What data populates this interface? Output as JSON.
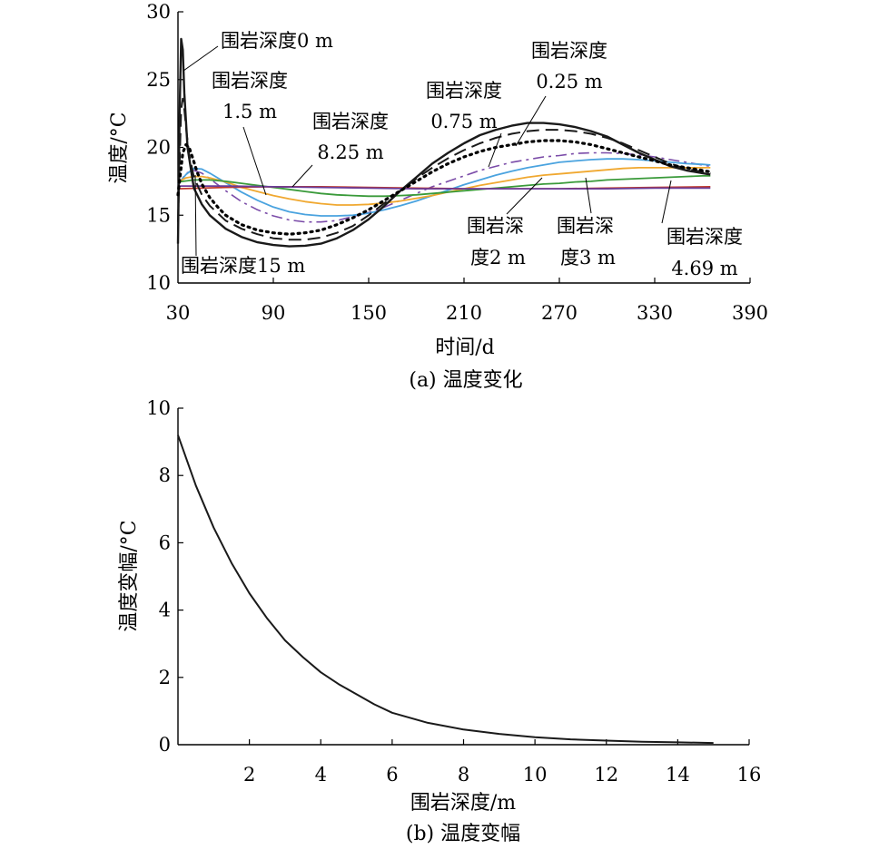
{
  "chart_data": [
    {
      "type": "line",
      "caption": "(a) 温度变化",
      "xlabel": "时间/d",
      "ylabel": "温度/°C",
      "xlim": [
        30,
        390
      ],
      "ylim": [
        10,
        30
      ],
      "xticks": [
        "30",
        "90",
        "150",
        "210",
        "270",
        "330",
        "390"
      ],
      "yticks": [
        "10",
        "15",
        "20",
        "25",
        "30"
      ],
      "grid": false,
      "series": [
        {
          "name": "围岩深度0 m",
          "color": "#1a1a1a",
          "dash": "",
          "width": 2.4,
          "x": [
            30,
            31,
            32,
            33,
            34,
            36,
            40,
            45,
            50,
            60,
            70,
            80,
            90,
            100,
            110,
            120,
            130,
            140,
            150,
            160,
            170,
            180,
            190,
            200,
            210,
            220,
            230,
            240,
            250,
            260,
            270,
            280,
            290,
            300,
            310,
            320,
            330,
            340,
            350,
            360,
            365
          ],
          "y": [
            12.9,
            22.5,
            28.0,
            27.2,
            24.0,
            20.0,
            17.0,
            15.8,
            15.0,
            14.0,
            13.4,
            13.0,
            12.8,
            12.7,
            12.75,
            12.9,
            13.3,
            13.9,
            14.7,
            15.7,
            16.8,
            17.8,
            18.8,
            19.6,
            20.3,
            20.9,
            21.3,
            21.6,
            21.8,
            21.8,
            21.7,
            21.5,
            21.2,
            20.8,
            20.2,
            19.6,
            19.1,
            18.6,
            18.3,
            18.1,
            18.0
          ]
        },
        {
          "name": "0.25 m",
          "color": "#1a1a1a",
          "dash": "14 7",
          "width": 2,
          "x": [
            30,
            32,
            33,
            34,
            35,
            37,
            40,
            45,
            50,
            60,
            70,
            80,
            90,
            100,
            110,
            120,
            130,
            140,
            150,
            160,
            170,
            180,
            190,
            200,
            210,
            220,
            230,
            240,
            250,
            260,
            270,
            280,
            290,
            300,
            310,
            320,
            330,
            340,
            350,
            360,
            365
          ],
          "y": [
            14.5,
            22.8,
            23.6,
            22.8,
            21.5,
            19.5,
            17.8,
            16.5,
            15.7,
            14.6,
            14.0,
            13.6,
            13.3,
            13.2,
            13.2,
            13.35,
            13.7,
            14.2,
            15.0,
            15.9,
            16.8,
            17.7,
            18.5,
            19.2,
            19.8,
            20.3,
            20.7,
            21.0,
            21.2,
            21.3,
            21.3,
            21.2,
            21.0,
            20.7,
            20.3,
            19.8,
            19.3,
            18.8,
            18.4,
            18.2,
            18.1
          ]
        },
        {
          "name": "0.75 m",
          "color": "#000000",
          "dash": "2 5",
          "width": 3.2,
          "x": [
            30,
            33,
            35,
            37,
            39,
            42,
            45,
            50,
            55,
            60,
            70,
            80,
            90,
            100,
            110,
            120,
            130,
            140,
            150,
            160,
            170,
            180,
            190,
            200,
            210,
            220,
            230,
            240,
            250,
            260,
            270,
            280,
            290,
            300,
            310,
            320,
            330,
            340,
            350,
            360,
            365
          ],
          "y": [
            16.5,
            19.6,
            20.2,
            20.0,
            19.3,
            18.2,
            17.3,
            16.3,
            15.6,
            15.0,
            14.3,
            13.9,
            13.7,
            13.6,
            13.7,
            13.9,
            14.3,
            14.8,
            15.4,
            16.1,
            16.8,
            17.5,
            18.2,
            18.8,
            19.3,
            19.7,
            20.0,
            20.2,
            20.4,
            20.5,
            20.5,
            20.4,
            20.2,
            19.9,
            19.6,
            19.3,
            19.0,
            18.7,
            18.5,
            18.3,
            18.2
          ]
        },
        {
          "name": "1.5 m",
          "color": "#7a4ba8",
          "dash": "12 5 3 5",
          "width": 1.6,
          "x": [
            30,
            35,
            40,
            45,
            50,
            60,
            70,
            80,
            90,
            100,
            110,
            120,
            130,
            140,
            150,
            160,
            170,
            180,
            190,
            200,
            210,
            220,
            230,
            240,
            250,
            260,
            270,
            280,
            290,
            300,
            310,
            320,
            330,
            340,
            350,
            360,
            365
          ],
          "y": [
            17.2,
            18.1,
            18.3,
            18.1,
            17.7,
            16.8,
            16.0,
            15.4,
            14.95,
            14.65,
            14.5,
            14.5,
            14.6,
            14.9,
            15.2,
            15.6,
            16.1,
            16.6,
            17.1,
            17.5,
            17.9,
            18.3,
            18.6,
            18.9,
            19.1,
            19.3,
            19.4,
            19.55,
            19.6,
            19.6,
            19.55,
            19.45,
            19.3,
            19.1,
            18.9,
            18.7,
            18.6
          ]
        },
        {
          "name": "2 m",
          "color": "#4aa3df",
          "dash": "",
          "width": 1.8,
          "x": [
            30,
            35,
            40,
            45,
            50,
            60,
            70,
            80,
            90,
            100,
            110,
            120,
            130,
            140,
            150,
            160,
            170,
            180,
            190,
            200,
            210,
            220,
            230,
            240,
            250,
            260,
            270,
            280,
            290,
            300,
            310,
            320,
            330,
            340,
            350,
            360,
            365
          ],
          "y": [
            17.3,
            18.0,
            18.45,
            18.4,
            18.1,
            17.4,
            16.7,
            16.1,
            15.6,
            15.25,
            15.05,
            14.95,
            14.95,
            15.0,
            15.15,
            15.4,
            15.7,
            16.05,
            16.45,
            16.85,
            17.25,
            17.6,
            17.95,
            18.25,
            18.5,
            18.7,
            18.9,
            19.0,
            19.1,
            19.15,
            19.15,
            19.1,
            19.0,
            18.9,
            18.8,
            18.75,
            18.7
          ]
        },
        {
          "name": "3 m",
          "color": "#f0a830",
          "dash": "",
          "width": 1.8,
          "x": [
            30,
            35,
            40,
            45,
            50,
            60,
            70,
            80,
            90,
            100,
            110,
            120,
            130,
            140,
            150,
            160,
            170,
            180,
            190,
            200,
            210,
            220,
            230,
            240,
            250,
            260,
            270,
            280,
            290,
            300,
            310,
            320,
            330,
            340,
            350,
            360,
            365
          ],
          "y": [
            17.45,
            17.75,
            17.85,
            17.85,
            17.75,
            17.45,
            17.05,
            16.75,
            16.45,
            16.2,
            16.0,
            15.85,
            15.75,
            15.75,
            15.8,
            15.9,
            16.05,
            16.25,
            16.45,
            16.7,
            16.95,
            17.2,
            17.4,
            17.6,
            17.8,
            17.95,
            18.05,
            18.15,
            18.25,
            18.35,
            18.45,
            18.5,
            18.5,
            18.5,
            18.5,
            18.5,
            18.5
          ]
        },
        {
          "name": "4.69 m",
          "color": "#3a9a3a",
          "dash": "",
          "width": 1.8,
          "x": [
            30,
            40,
            50,
            60,
            70,
            80,
            90,
            100,
            110,
            120,
            130,
            140,
            150,
            160,
            170,
            180,
            190,
            200,
            210,
            220,
            230,
            240,
            250,
            260,
            270,
            280,
            290,
            300,
            310,
            320,
            330,
            340,
            350,
            360,
            365
          ],
          "y": [
            17.45,
            17.6,
            17.6,
            17.5,
            17.35,
            17.2,
            17.05,
            16.9,
            16.75,
            16.6,
            16.5,
            16.45,
            16.4,
            16.4,
            16.45,
            16.5,
            16.6,
            16.7,
            16.8,
            16.9,
            17.0,
            17.1,
            17.2,
            17.3,
            17.35,
            17.45,
            17.5,
            17.6,
            17.65,
            17.7,
            17.75,
            17.8,
            17.85,
            17.9,
            17.9
          ]
        },
        {
          "name": "8.25 m",
          "color": "#c0392b",
          "dash": "",
          "width": 1.8,
          "x": [
            30,
            60,
            90,
            120,
            150,
            180,
            210,
            240,
            270,
            300,
            330,
            365
          ],
          "y": [
            16.95,
            17.05,
            17.1,
            17.1,
            17.05,
            17.0,
            16.95,
            16.95,
            16.95,
            17.0,
            17.05,
            17.1
          ]
        },
        {
          "name": "围岩深度15 m",
          "color": "#6a3d9a",
          "dash": "",
          "width": 1.8,
          "x": [
            30,
            60,
            90,
            120,
            150,
            180,
            210,
            240,
            270,
            300,
            330,
            365
          ],
          "y": [
            17.15,
            17.15,
            17.1,
            17.05,
            17.0,
            16.95,
            16.95,
            16.95,
            16.95,
            16.95,
            17.0,
            17.0
          ]
        }
      ],
      "annotations": [
        {
          "lines": [
            "围岩深度0 m"
          ]
        },
        {
          "lines": [
            "围岩深度",
            "1.5 m"
          ]
        },
        {
          "lines": [
            "围岩深度",
            "8.25 m"
          ]
        },
        {
          "lines": [
            "围岩深度",
            "0.75 m"
          ]
        },
        {
          "lines": [
            "围岩深度",
            "0.25 m"
          ]
        },
        {
          "lines": [
            "围岩深度15 m"
          ]
        },
        {
          "lines": [
            "围岩深",
            "度2 m"
          ]
        },
        {
          "lines": [
            "围岩深",
            "度3 m"
          ]
        },
        {
          "lines": [
            "围岩深度",
            "4.69 m"
          ]
        }
      ]
    },
    {
      "type": "line",
      "caption": "(b) 温度变幅",
      "xlabel": "围岩深度/m",
      "ylabel": "温度变幅/°C",
      "xlim": [
        0,
        16
      ],
      "ylim": [
        0,
        10
      ],
      "xticks": [
        "2",
        "4",
        "6",
        "8",
        "10",
        "12",
        "14",
        "16"
      ],
      "yticks": [
        "0",
        "2",
        "4",
        "6",
        "8",
        "10"
      ],
      "grid": false,
      "series": [
        {
          "color": "#1a1a1a",
          "dash": "",
          "width": 2,
          "x": [
            0,
            0.5,
            1,
            1.5,
            2,
            2.5,
            3,
            3.5,
            4,
            4.5,
            5,
            5.5,
            6,
            7,
            8,
            9,
            10,
            11,
            12,
            13,
            14,
            15
          ],
          "y": [
            9.2,
            7.7,
            6.45,
            5.4,
            4.5,
            3.75,
            3.1,
            2.6,
            2.15,
            1.8,
            1.5,
            1.2,
            0.95,
            0.65,
            0.45,
            0.32,
            0.22,
            0.16,
            0.12,
            0.09,
            0.07,
            0.05
          ]
        }
      ]
    }
  ]
}
